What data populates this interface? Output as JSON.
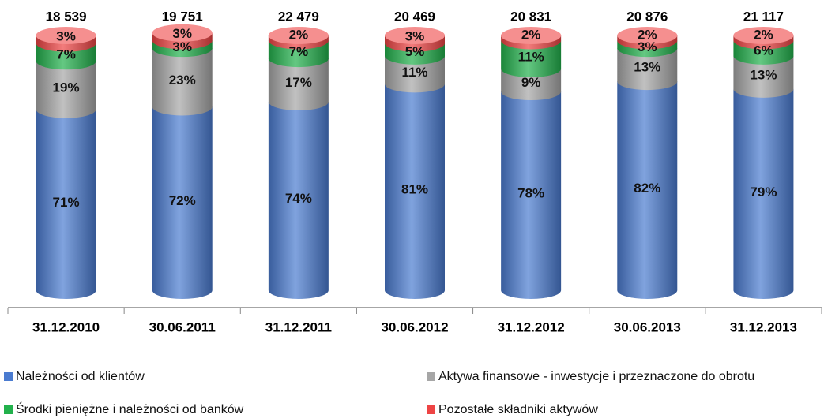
{
  "chart_data": {
    "type": "stacked-cylinder",
    "categories": [
      "31.12.2010",
      "30.06.2011",
      "31.12.2011",
      "30.06.2012",
      "31.12.2012",
      "30.06.2013",
      "31.12.2013"
    ],
    "ylim": [
      0,
      100
    ],
    "series": [
      {
        "name": "Należności od klientów",
        "color": "#4a7bd0",
        "values": [
          71,
          72,
          74,
          81,
          78,
          82,
          79
        ],
        "value_labels": [
          "71%",
          "72%",
          "74%",
          "81%",
          "78%",
          "82%",
          "79%"
        ]
      },
      {
        "name": "Aktywa finansowe - inwestycje i przeznaczone do obrotu",
        "color": "#a6a6a6",
        "values": [
          19,
          23,
          17,
          11,
          9,
          13,
          13
        ],
        "value_labels": [
          "19%",
          "23%",
          "17%",
          "11%",
          "9%",
          "13%",
          "13%"
        ]
      },
      {
        "name": "Środki pieniężne i należności od banków",
        "color": "#22b14c",
        "values": [
          7,
          3,
          7,
          5,
          11,
          3,
          6
        ],
        "value_labels": [
          "7%",
          "3%",
          "7%",
          "5%",
          "11%",
          "3%",
          "6%"
        ]
      },
      {
        "name": "Pozostałe składniki aktywów",
        "color": "#ee4444",
        "values": [
          3,
          3,
          2,
          3,
          2,
          2,
          2
        ],
        "value_labels": [
          "3%",
          "3%",
          "2%",
          "3%",
          "2%",
          "2%",
          "2%"
        ]
      }
    ],
    "totals": {
      "values": [
        18539,
        19751,
        22479,
        20469,
        20831,
        20876,
        21117
      ],
      "value_labels": [
        "18 539",
        "19 751",
        "22 479",
        "20 469",
        "20 831",
        "20 876",
        "21 117"
      ]
    }
  }
}
